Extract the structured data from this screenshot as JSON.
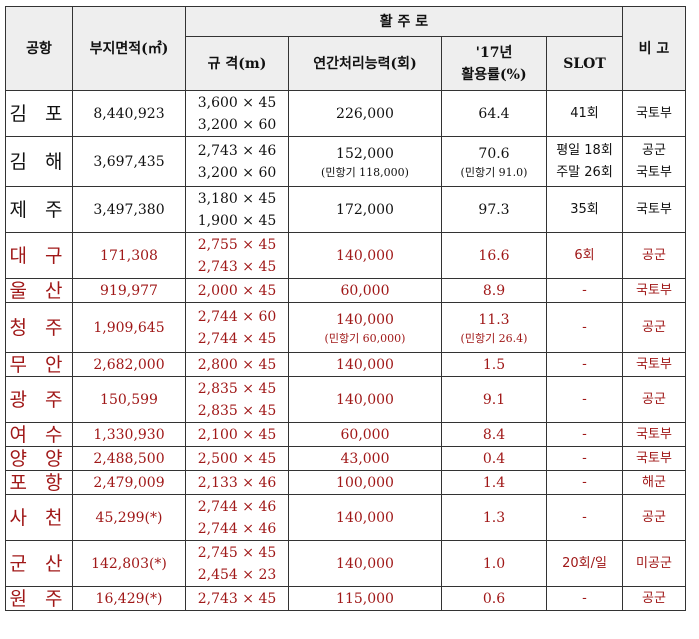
{
  "headers": {
    "airport": "공항",
    "area": "부지면적(㎡)",
    "runway_group": "활   주   로",
    "spec": "규  격(m)",
    "capacity": "연간처리능력(회)",
    "usage_line1": "'17년",
    "usage_line2": "활용률(%)",
    "slot": "SLOT",
    "remarks": "비  고"
  },
  "colors": {
    "black_text": "#111111",
    "red_text": "#a01818",
    "header_bg": "#eeeeee"
  },
  "rows": [
    {
      "airport": "김 포",
      "area": "8,440,923",
      "spec": [
        "3,600 × 45",
        "3,200 × 60"
      ],
      "capacity": "226,000",
      "capacity_note": "",
      "usage": "64.4",
      "usage_note": "",
      "slot": [
        "41회"
      ],
      "remarks": [
        "국토부"
      ],
      "color": "black"
    },
    {
      "airport": "김 해",
      "area": "3,697,435",
      "spec": [
        "2,743 × 46",
        "3,200 × 60"
      ],
      "capacity": "152,000",
      "capacity_note": "(민항기 118,000)",
      "usage": "70.6",
      "usage_note": "(민항기 91.0)",
      "slot": [
        "평일 18회",
        "주말 26회"
      ],
      "remarks": [
        "공군",
        "국토부"
      ],
      "color": "black"
    },
    {
      "airport": "제 주",
      "area": "3,497,380",
      "spec": [
        "3,180 × 45",
        "1,900 × 45"
      ],
      "capacity": "172,000",
      "capacity_note": "",
      "usage": "97.3",
      "usage_note": "",
      "slot": [
        "35회"
      ],
      "remarks": [
        "국토부"
      ],
      "color": "black"
    },
    {
      "airport": "대 구",
      "area": "171,308",
      "spec": [
        "2,755 × 45",
        "2,743 × 45"
      ],
      "capacity": "140,000",
      "capacity_note": "",
      "usage": "16.6",
      "usage_note": "",
      "slot": [
        "6회"
      ],
      "remarks": [
        "공군"
      ],
      "color": "red"
    },
    {
      "airport": "울 산",
      "area": "919,977",
      "spec": [
        "2,000 × 45"
      ],
      "capacity": "60,000",
      "capacity_note": "",
      "usage": "8.9",
      "usage_note": "",
      "slot": [
        "-"
      ],
      "remarks": [
        "국토부"
      ],
      "color": "red"
    },
    {
      "airport": "청 주",
      "area": "1,909,645",
      "spec": [
        "2,744 × 60",
        "2,744 × 45"
      ],
      "capacity": "140,000",
      "capacity_note": "(민항기 60,000)",
      "usage": "11.3",
      "usage_note": "(민항기 26.4)",
      "slot": [
        "-"
      ],
      "remarks": [
        "공군"
      ],
      "color": "red"
    },
    {
      "airport": "무 안",
      "area": "2,682,000",
      "spec": [
        "2,800 × 45"
      ],
      "capacity": "140,000",
      "capacity_note": "",
      "usage": "1.5",
      "usage_note": "",
      "slot": [
        "-"
      ],
      "remarks": [
        "국토부"
      ],
      "color": "red"
    },
    {
      "airport": "광 주",
      "area": "150,599",
      "spec": [
        "2,835 × 45",
        "2,835 × 45"
      ],
      "capacity": "140,000",
      "capacity_note": "",
      "usage": "9.1",
      "usage_note": "",
      "slot": [
        "-"
      ],
      "remarks": [
        "공군"
      ],
      "color": "red"
    },
    {
      "airport": "여 수",
      "area": "1,330,930",
      "spec": [
        "2,100 × 45"
      ],
      "capacity": "60,000",
      "capacity_note": "",
      "usage": "8.4",
      "usage_note": "",
      "slot": [
        "-"
      ],
      "remarks": [
        "국토부"
      ],
      "color": "red"
    },
    {
      "airport": "양 양",
      "area": "2,488,500",
      "spec": [
        "2,500 × 45"
      ],
      "capacity": "43,000",
      "capacity_note": "",
      "usage": "0.4",
      "usage_note": "",
      "slot": [
        "-"
      ],
      "remarks": [
        "국토부"
      ],
      "color": "red"
    },
    {
      "airport": "포 항",
      "area": "2,479,009",
      "spec": [
        "2,133 × 46"
      ],
      "capacity": "100,000",
      "capacity_note": "",
      "usage": "1.4",
      "usage_note": "",
      "slot": [
        "-"
      ],
      "remarks": [
        "해군"
      ],
      "color": "red"
    },
    {
      "airport": "사 천",
      "area": "45,299(*)",
      "spec": [
        "2,744 × 46",
        "2,744 × 46"
      ],
      "capacity": "140,000",
      "capacity_note": "",
      "usage": "1.3",
      "usage_note": "",
      "slot": [
        "-"
      ],
      "remarks": [
        "공군"
      ],
      "color": "red"
    },
    {
      "airport": "군 산",
      "area": "142,803(*)",
      "spec": [
        "2,745 × 45",
        "2,454 × 23"
      ],
      "capacity": "140,000",
      "capacity_note": "",
      "usage": "1.0",
      "usage_note": "",
      "slot": [
        "20회/일"
      ],
      "remarks": [
        "미공군"
      ],
      "color": "red"
    },
    {
      "airport": "원 주",
      "area": "16,429(*)",
      "spec": [
        "2,743 × 45"
      ],
      "capacity": "115,000",
      "capacity_note": "",
      "usage": "0.6",
      "usage_note": "",
      "slot": [
        "-"
      ],
      "remarks": [
        "공군"
      ],
      "color": "red"
    }
  ]
}
